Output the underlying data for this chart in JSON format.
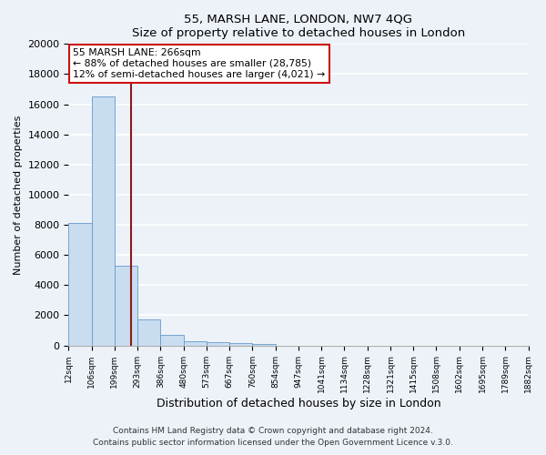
{
  "title": "55, MARSH LANE, LONDON, NW7 4QG",
  "subtitle": "Size of property relative to detached houses in London",
  "bar_values": [
    8100,
    16500,
    5300,
    1750,
    700,
    280,
    200,
    130,
    100,
    0,
    0,
    0,
    0,
    0,
    0,
    0,
    0,
    0,
    0,
    0
  ],
  "bin_labels": [
    "12sqm",
    "106sqm",
    "199sqm",
    "293sqm",
    "386sqm",
    "480sqm",
    "573sqm",
    "667sqm",
    "760sqm",
    "854sqm",
    "947sqm",
    "1041sqm",
    "1134sqm",
    "1228sqm",
    "1321sqm",
    "1415sqm",
    "1508sqm",
    "1602sqm",
    "1695sqm",
    "1789sqm",
    "1882sqm"
  ],
  "bar_color": "#c9ddf0",
  "bar_edge_color": "#6699cc",
  "marker_color": "#8b1a1a",
  "marker_label": "55 MARSH LANE: 266sqm",
  "annotation_line1": "← 88% of detached houses are smaller (28,785)",
  "annotation_line2": "12% of semi-detached houses are larger (4,021) →",
  "ylabel": "Number of detached properties",
  "xlabel": "Distribution of detached houses by size in London",
  "ylim": [
    0,
    20000
  ],
  "yticks": [
    0,
    2000,
    4000,
    6000,
    8000,
    10000,
    12000,
    14000,
    16000,
    18000,
    20000
  ],
  "footnote1": "Contains HM Land Registry data © Crown copyright and database right 2024.",
  "footnote2": "Contains public sector information licensed under the Open Government Licence v.3.0.",
  "background_color": "#edf2f9",
  "grid_color": "#ffffff",
  "annotation_box_color": "#ffffff",
  "annotation_box_edge": "#cc1111"
}
